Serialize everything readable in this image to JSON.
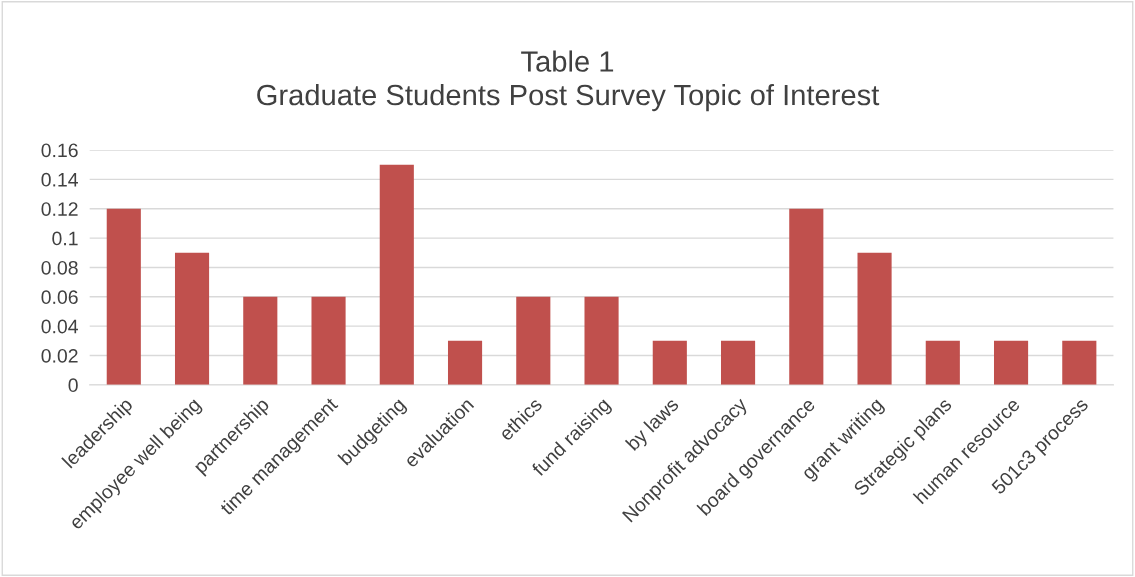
{
  "chart_data": {
    "type": "bar",
    "title": "Table 1\nGraduate Students Post Survey Topic of Interest",
    "categories": [
      "leadership",
      "employee well being",
      "partnership",
      "time management",
      "budgeting",
      "evaluation",
      "ethics",
      "fund raising",
      "by laws",
      "Nonprofit advocacy",
      "board governance",
      "grant writing",
      "Strategic plans",
      "human resource",
      "501c3 process"
    ],
    "values": [
      0.12,
      0.09,
      0.06,
      0.06,
      0.15,
      0.03,
      0.06,
      0.06,
      0.03,
      0.03,
      0.12,
      0.09,
      0.03,
      0.03,
      0.03
    ],
    "color": "#c0504d",
    "ylim": [
      0,
      0.16
    ],
    "yticks": [
      0,
      0.02,
      0.04,
      0.06,
      0.08,
      0.1,
      0.12,
      0.14,
      0.16
    ],
    "grid": "y",
    "legend": false
  }
}
